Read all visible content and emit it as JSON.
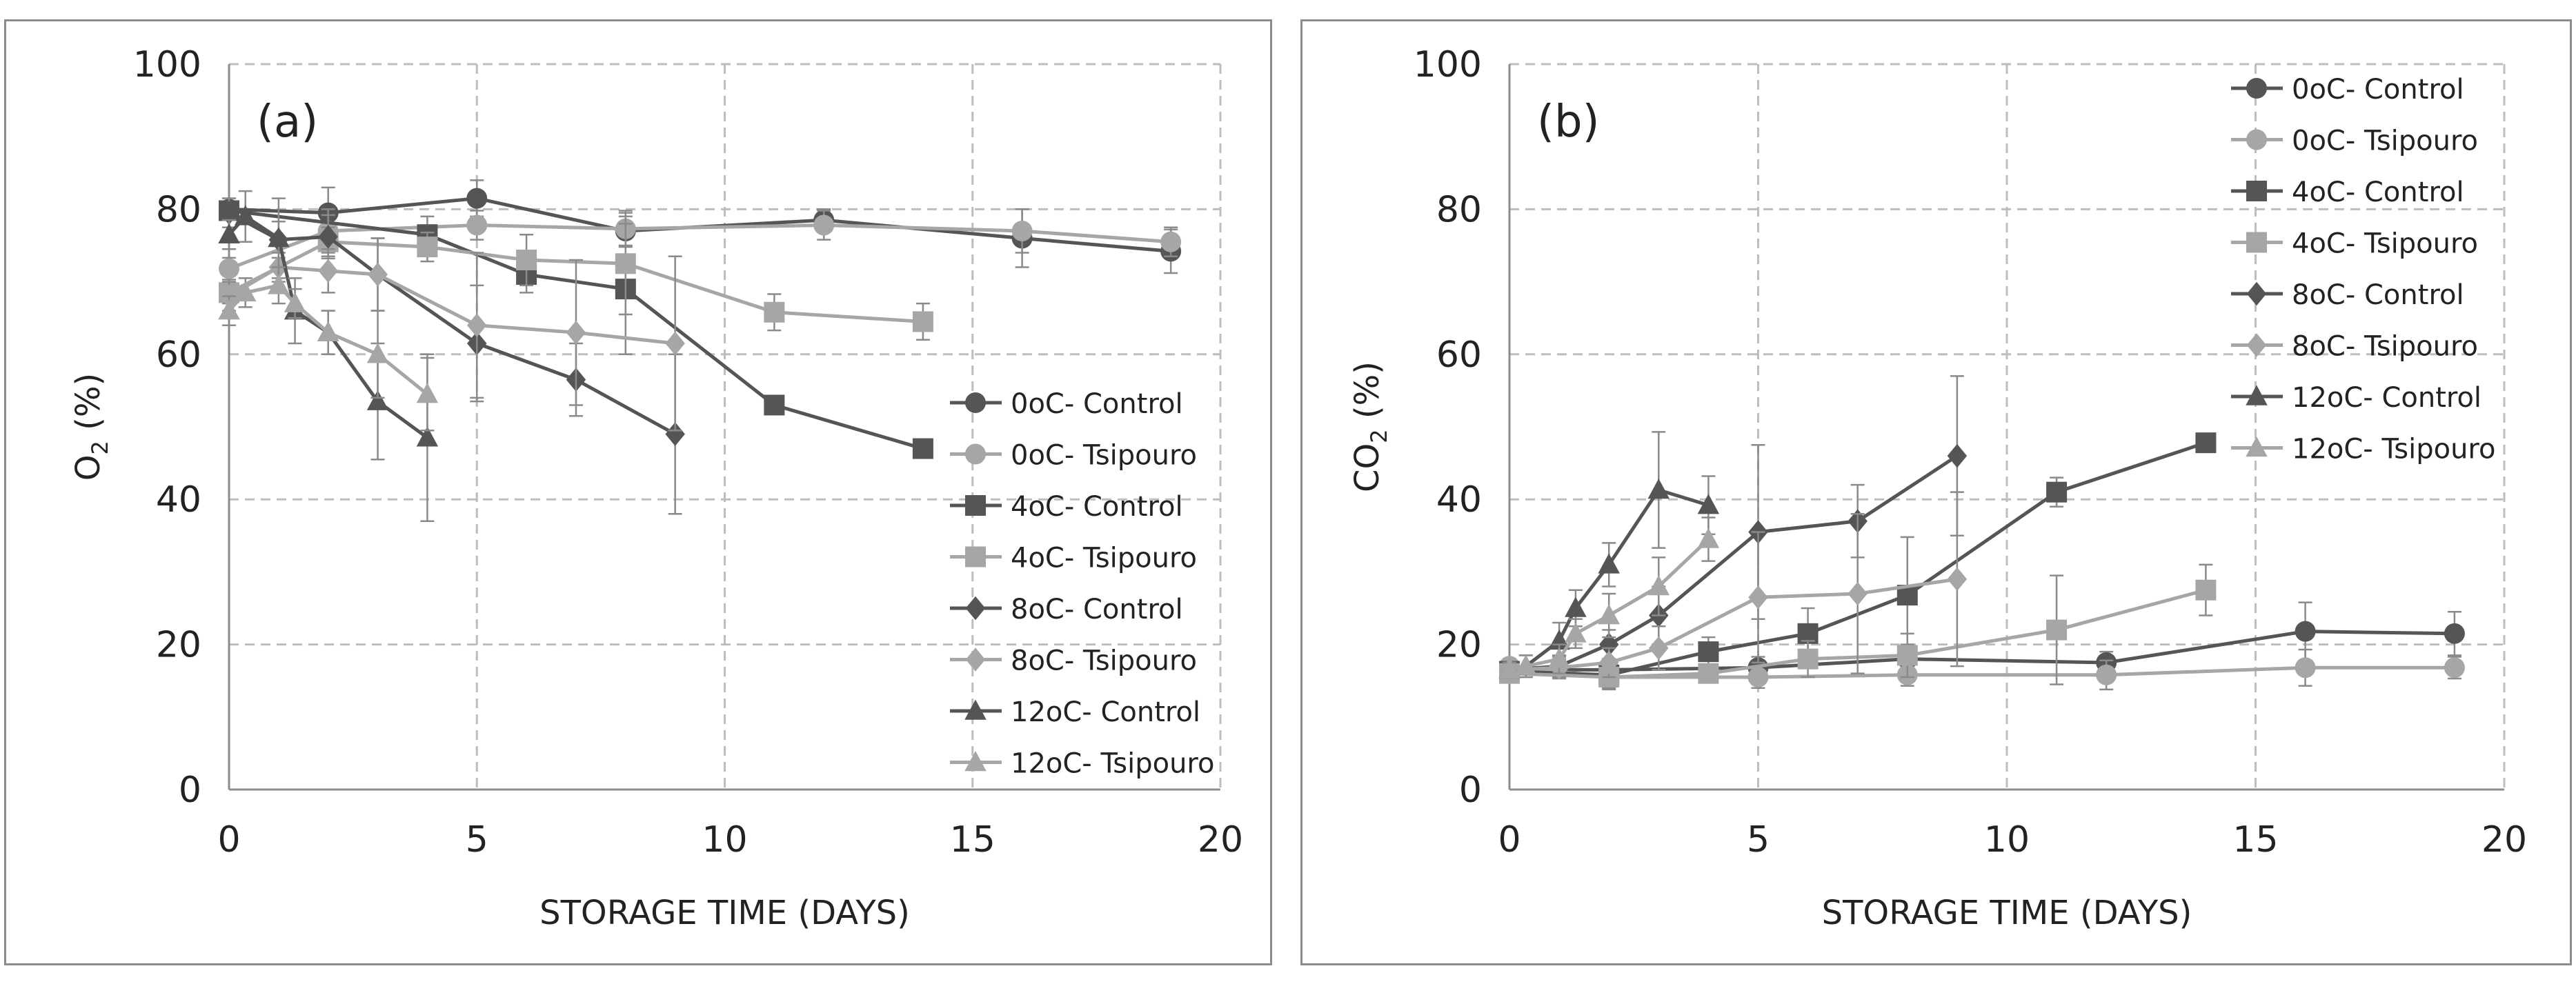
{
  "chart_data": [
    {
      "type": "line",
      "panel_label": "(a)",
      "xlabel": "STORAGE TIME (DAYS)",
      "ylabel_main": "O",
      "ylabel_sub": "2",
      "ylabel_unit": " (%)",
      "xlim": [
        0,
        20
      ],
      "ylim": [
        0,
        100
      ],
      "xticks": [
        "0",
        "5",
        "10",
        "15",
        "20"
      ],
      "yticks": [
        "0",
        "20",
        "40",
        "60",
        "80",
        "100"
      ],
      "grid": true,
      "legend_position": "right-middle",
      "series": [
        {
          "name": "0oC- Control",
          "color": "#555555",
          "marker": "circle",
          "x": [
            0,
            2,
            5,
            8,
            12,
            16,
            19
          ],
          "y": [
            80,
            79.5,
            81.5,
            77,
            78.5,
            76,
            74.2
          ],
          "err": [
            1.5,
            3.5,
            2.5,
            2,
            1.5,
            4,
            3
          ]
        },
        {
          "name": "0oC- Tsipouro",
          "color": "#a6a6a6",
          "marker": "circle",
          "x": [
            0,
            2,
            5,
            8,
            12,
            16,
            19
          ],
          "y": [
            71.8,
            77,
            77.8,
            77.3,
            77.8,
            77,
            75.5
          ],
          "err": [
            1.5,
            3,
            2,
            2.5,
            2,
            3,
            2
          ]
        },
        {
          "name": "4oC- Control",
          "color": "#555555",
          "marker": "square",
          "x": [
            0,
            4,
            6,
            8,
            11,
            14
          ],
          "y": [
            79.8,
            76.5,
            71,
            69,
            53,
            47
          ],
          "err": [
            1,
            2.5,
            2.5,
            9,
            0,
            1
          ]
        },
        {
          "name": "4oC- Tsipouro",
          "color": "#a6a6a6",
          "marker": "square",
          "x": [
            0,
            2,
            4,
            6,
            8,
            11,
            14
          ],
          "y": [
            68.5,
            75.5,
            74.8,
            73,
            72.5,
            65.8,
            64.5
          ],
          "err": [
            1.5,
            2,
            2,
            3.5,
            7,
            2.5,
            2.5
          ]
        },
        {
          "name": "8oC- Control",
          "color": "#555555",
          "marker": "diamond",
          "x": [
            0,
            1,
            2,
            3,
            5,
            7,
            9
          ],
          "y": [
            79.5,
            75.8,
            76.2,
            71,
            61.5,
            56.5,
            49
          ],
          "err": [
            2,
            2.5,
            3,
            5,
            8,
            5,
            11
          ]
        },
        {
          "name": "8oC- Tsipouro",
          "color": "#a6a6a6",
          "marker": "diamond",
          "x": [
            0,
            1,
            2,
            3,
            5,
            7,
            9
          ],
          "y": [
            68,
            72,
            71.5,
            71,
            64,
            63,
            61.5
          ],
          "err": [
            2,
            2,
            3,
            5,
            10,
            10,
            12
          ]
        },
        {
          "name": "12oC- Control",
          "color": "#555555",
          "marker": "triangle",
          "x": [
            0,
            0.33,
            1,
            1.33,
            2,
            3,
            4
          ],
          "y": [
            76.5,
            79,
            76,
            66,
            63,
            53.5,
            48.5
          ],
          "err": [
            2,
            3.5,
            5.5,
            4.5,
            3,
            8,
            11.5
          ]
        },
        {
          "name": "12oC- Tsipouro",
          "color": "#a6a6a6",
          "marker": "triangle",
          "x": [
            0,
            0.33,
            1,
            1.33,
            2,
            3,
            4
          ],
          "y": [
            66,
            68.5,
            69.5,
            67,
            63,
            60,
            54.5
          ],
          "err": [
            2,
            2,
            2.5,
            2,
            3,
            6,
            5
          ]
        }
      ]
    },
    {
      "type": "line",
      "panel_label": "(b)",
      "xlabel": "STORAGE TIME (DAYS)",
      "ylabel_main": "CO",
      "ylabel_sub": "2",
      "ylabel_unit": " (%)",
      "xlim": [
        0,
        20
      ],
      "ylim": [
        0,
        100
      ],
      "xticks": [
        "0",
        "5",
        "10",
        "15",
        "20"
      ],
      "yticks": [
        "0",
        "20",
        "40",
        "60",
        "80",
        "100"
      ],
      "grid": true,
      "legend_position": "top-right",
      "series": [
        {
          "name": "0oC- Control",
          "color": "#555555",
          "marker": "circle",
          "x": [
            0,
            2,
            5,
            8,
            12,
            16,
            19
          ],
          "y": [
            16.5,
            16.5,
            16.8,
            18,
            17.5,
            21.8,
            21.5
          ],
          "err": [
            1,
            1.5,
            1.5,
            2,
            1.5,
            4,
            3
          ]
        },
        {
          "name": "0oC- Tsipouro",
          "color": "#a6a6a6",
          "marker": "circle",
          "x": [
            0,
            2,
            5,
            8,
            12,
            16,
            19
          ],
          "y": [
            17,
            15.5,
            15.5,
            15.8,
            15.8,
            16.8,
            16.8
          ],
          "err": [
            1,
            1.5,
            1.5,
            1.5,
            2,
            2.5,
            1.5
          ]
        },
        {
          "name": "4oC- Control",
          "color": "#555555",
          "marker": "square",
          "x": [
            0,
            2,
            4,
            6,
            8,
            11,
            14
          ],
          "y": [
            16.3,
            15.8,
            19,
            21.5,
            26.8,
            41,
            47.8
          ],
          "err": [
            1,
            2,
            2,
            3.5,
            8,
            2,
            0.5
          ]
        },
        {
          "name": "4oC- Tsipouro",
          "color": "#a6a6a6",
          "marker": "square",
          "x": [
            0,
            2,
            4,
            6,
            8,
            11,
            14
          ],
          "y": [
            16,
            15.5,
            16,
            18,
            18.5,
            22,
            27.5
          ],
          "err": [
            1,
            1.5,
            1,
            2.5,
            3,
            7.5,
            3.5
          ]
        },
        {
          "name": "8oC- Control",
          "color": "#555555",
          "marker": "diamond",
          "x": [
            0,
            1,
            2,
            3,
            5,
            7,
            9
          ],
          "y": [
            16.5,
            17,
            20,
            24,
            35.5,
            37,
            46
          ],
          "err": [
            1,
            1.5,
            2,
            4,
            12,
            5,
            11
          ]
        },
        {
          "name": "8oC- Tsipouro",
          "color": "#a6a6a6",
          "marker": "diamond",
          "x": [
            0,
            1,
            2,
            3,
            5,
            7,
            9
          ],
          "y": [
            16.5,
            16.8,
            17.5,
            19.5,
            26.5,
            27,
            29
          ],
          "err": [
            1,
            1.5,
            2,
            3,
            9,
            11,
            12
          ]
        },
        {
          "name": "12oC- Control",
          "color": "#555555",
          "marker": "triangle",
          "x": [
            0,
            0.33,
            1,
            1.33,
            2,
            3,
            4
          ],
          "y": [
            16.5,
            17,
            20.5,
            25,
            31,
            41.3,
            39.2
          ],
          "err": [
            1,
            1.5,
            2.5,
            2.5,
            3,
            8,
            4
          ]
        },
        {
          "name": "12oC- Tsipouro",
          "color": "#a6a6a6",
          "marker": "triangle",
          "x": [
            0,
            0.33,
            1,
            1.33,
            2,
            3,
            4
          ],
          "y": [
            16.5,
            17,
            18,
            21.5,
            24,
            28,
            34.5
          ],
          "err": [
            1,
            1.5,
            2,
            2,
            3,
            4,
            3
          ]
        }
      ]
    }
  ]
}
